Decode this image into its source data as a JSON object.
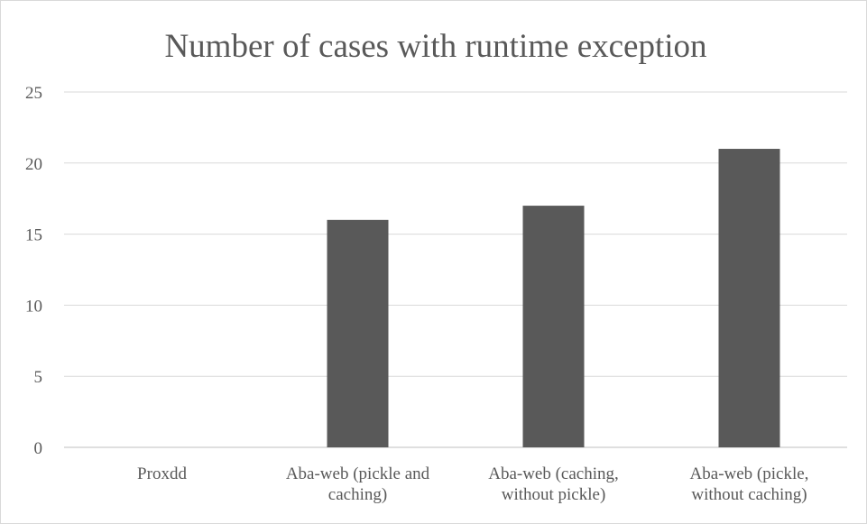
{
  "chart_data": {
    "type": "bar",
    "title": "Number of cases with runtime exception",
    "xlabel": "",
    "ylabel": "",
    "categories": [
      [
        "Proxdd"
      ],
      [
        "Aba-web (pickle and",
        "caching)"
      ],
      [
        "Aba-web (caching,",
        "without pickle)"
      ],
      [
        "Aba-web (pickle,",
        "without caching)"
      ]
    ],
    "values": [
      0,
      16,
      17,
      21
    ],
    "ylim": [
      0,
      25
    ],
    "yticks": [
      0,
      5,
      10,
      15,
      20,
      25
    ],
    "grid": true,
    "legend": "none",
    "bar_color": "#595959"
  }
}
